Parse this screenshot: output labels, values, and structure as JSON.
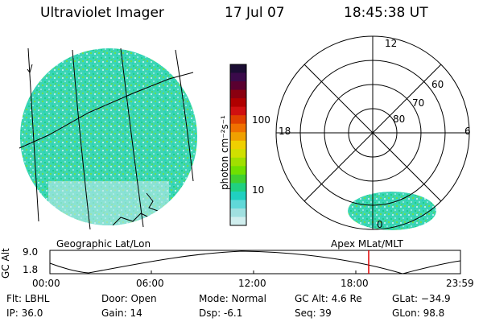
{
  "header": {
    "instrument": "Ultraviolet Imager",
    "date": "17 Jul 07",
    "time": "18:45:38 UT"
  },
  "colorbar": {
    "label": "photon cm⁻²s⁻¹",
    "ticks": [
      "100",
      "10"
    ],
    "colors": [
      "#1b0d33",
      "#3a0a4a",
      "#5a0030",
      "#8a0010",
      "#b00000",
      "#d01010",
      "#e04000",
      "#f07000",
      "#f0a000",
      "#f0d000",
      "#d0e000",
      "#a0e000",
      "#70e000",
      "#40d030",
      "#20d080",
      "#20d0c0",
      "#60d8d8",
      "#a0e0e0",
      "#d0eeee"
    ]
  },
  "left_map": {
    "label": "Geographic Lat/Lon"
  },
  "polar_plot": {
    "label": "Apex MLat/MLT",
    "mlt_labels": {
      "top": "12",
      "left": "18",
      "right": "6",
      "bottom": "0"
    },
    "lat_labels": [
      "60",
      "70",
      "80"
    ]
  },
  "altitude_plot": {
    "ylabel": "GC Alt",
    "y_ticks": [
      "9.0",
      "1.8"
    ],
    "x_ticks": [
      "00:00",
      "06:00",
      "12:00",
      "18:00",
      "23:59"
    ],
    "marker_time": "18:45"
  },
  "status": {
    "filter": "Flt: LBHL",
    "ip": "IP: 36.0",
    "door": "Door: Open",
    "gain": "Gain: 14",
    "mode": "Mode: Normal",
    "dsp": "Dsp:   -6.1",
    "gc_alt": "GC Alt: 4.6 Re",
    "seq": "Seq: 39",
    "glat": "GLat: −34.9",
    "glon": "GLon:  98.8"
  }
}
